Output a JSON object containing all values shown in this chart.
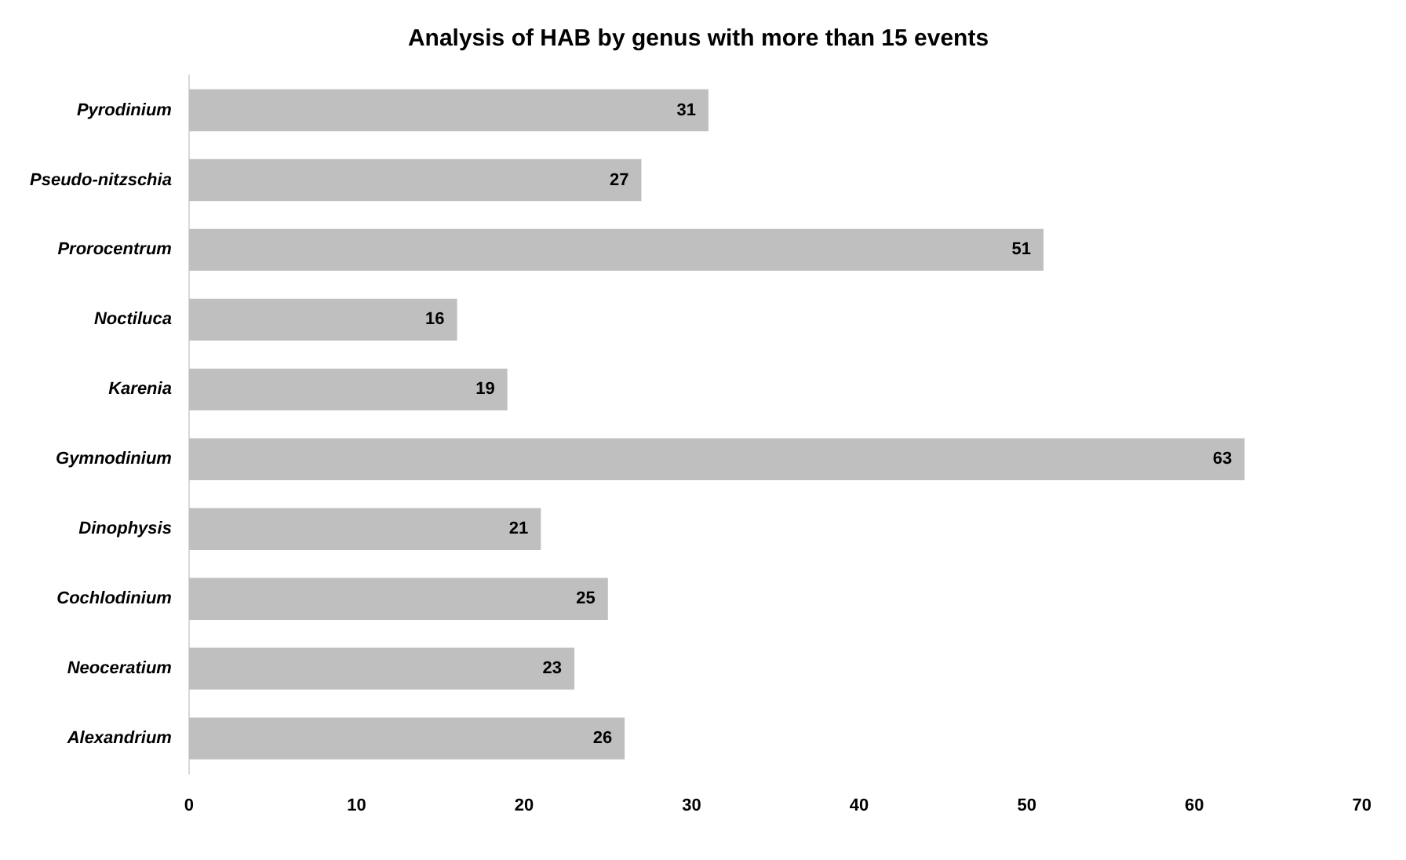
{
  "chart_data": {
    "type": "bar",
    "orientation": "horizontal",
    "title": "Analysis of HAB by genus with more than 15 events",
    "categories": [
      "Pyrodinium",
      "Pseudo-nitzschia",
      "Prorocentrum",
      "Noctiluca",
      "Karenia",
      "Gymnodinium",
      "Dinophysis",
      "Cochlodinium",
      "Neoceratium",
      "Alexandrium"
    ],
    "values": [
      31,
      27,
      51,
      16,
      19,
      63,
      21,
      25,
      23,
      26
    ],
    "color": "#bfbfbf",
    "xlim": [
      0,
      70
    ],
    "xticks": [
      0,
      10,
      20,
      30,
      40,
      50,
      60,
      70
    ],
    "grid": false,
    "legend": false,
    "data_labels": true
  }
}
